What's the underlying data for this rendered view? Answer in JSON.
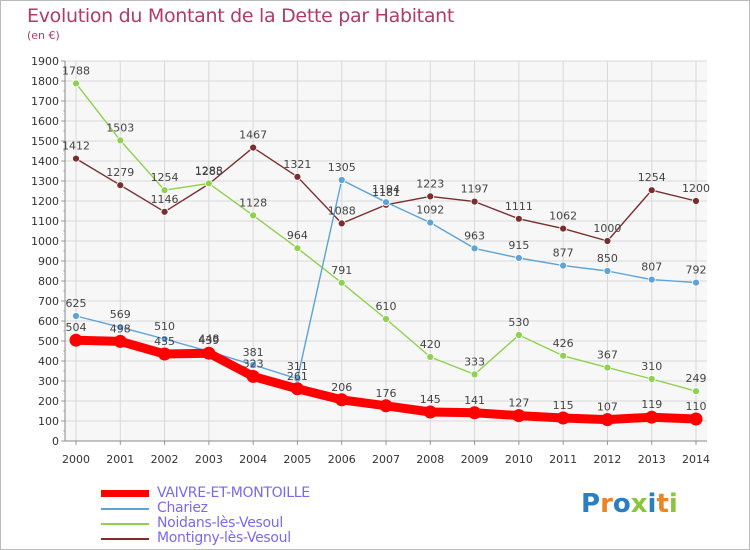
{
  "title": "Evolution du Montant de la Dette par Habitant",
  "subtitle": "(en €)",
  "logo": {
    "text": "Proxiti",
    "colors": [
      "#2a7fc0",
      "#e8862a",
      "#2a7fc0",
      "#8cc63f",
      "#2a7fc0",
      "#e8862a",
      "#8cc63f"
    ]
  },
  "chart_data": {
    "type": "line",
    "title": "Evolution du Montant de la Dette par Habitant",
    "ylabel": "(en €)",
    "x": [
      "2000",
      "2001",
      "2002",
      "2003",
      "2004",
      "2005",
      "2006",
      "2007",
      "2008",
      "2009",
      "2010",
      "2011",
      "2012",
      "2013",
      "2014"
    ],
    "ylim": [
      0,
      1900
    ],
    "yticks": [
      0,
      100,
      200,
      300,
      400,
      500,
      600,
      700,
      800,
      900,
      1000,
      1100,
      1200,
      1300,
      1400,
      1500,
      1600,
      1700,
      1800,
      1900
    ],
    "grid": true,
    "legend_position": "bottom-left",
    "series": [
      {
        "name": "VAIVRE-ET-MONTOILLE",
        "color": "#ff0000",
        "values": [
          504,
          498,
          435,
          439,
          323,
          261,
          206,
          176,
          145,
          141,
          127,
          115,
          107,
          119,
          110
        ]
      },
      {
        "name": "Chariez",
        "color": "#5ea3d8",
        "values": [
          625,
          569,
          510,
          448,
          381,
          311,
          1305,
          1194,
          1092,
          963,
          915,
          877,
          850,
          807,
          792
        ]
      },
      {
        "name": "Noidans-lès-Vesoul",
        "color": "#8fd14f",
        "values": [
          1788,
          1503,
          1254,
          1288,
          1128,
          964,
          791,
          610,
          420,
          333,
          530,
          426,
          367,
          310,
          249
        ]
      },
      {
        "name": "Montigny-lès-Vesoul",
        "color": "#7a2e2e",
        "values": [
          1412,
          1279,
          1146,
          1285,
          1467,
          1321,
          1088,
          1181,
          1223,
          1197,
          1111,
          1062,
          1000,
          1254,
          1200
        ]
      }
    ]
  }
}
